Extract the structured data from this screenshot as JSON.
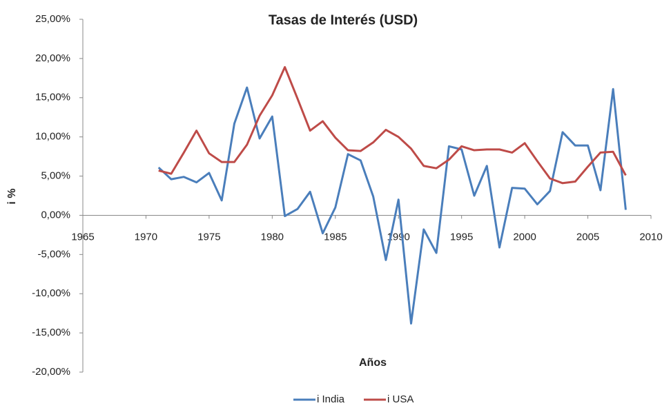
{
  "chart_data": {
    "type": "line",
    "title": "Tasas de Interés (USD)",
    "xlabel": "Años",
    "ylabel": "i %",
    "x": [
      1971,
      1972,
      1973,
      1974,
      1975,
      1976,
      1977,
      1978,
      1979,
      1980,
      1981,
      1982,
      1983,
      1984,
      1985,
      1986,
      1987,
      1988,
      1989,
      1990,
      1991,
      1992,
      1993,
      1994,
      1995,
      1996,
      1997,
      1998,
      1999,
      2000,
      2001,
      2002,
      2003,
      2004,
      2005,
      2006,
      2007,
      2008
    ],
    "series": [
      {
        "name": "i India",
        "color": "#4a7ebb",
        "values": [
          6.1,
          4.6,
          4.9,
          4.2,
          5.4,
          1.9,
          11.7,
          16.3,
          9.8,
          12.6,
          -0.1,
          0.8,
          3.0,
          -2.3,
          1.0,
          7.8,
          7.0,
          2.4,
          -5.7,
          2.0,
          -13.8,
          -1.8,
          -4.8,
          8.8,
          8.4,
          2.5,
          6.3,
          -4.1,
          3.5,
          3.4,
          1.4,
          3.1,
          10.6,
          8.9,
          8.9,
          3.2,
          16.1,
          0.7
        ]
      },
      {
        "name": "i USA",
        "color": "#be4b48",
        "values": [
          5.7,
          5.3,
          8.0,
          10.8,
          7.9,
          6.8,
          6.8,
          9.0,
          12.7,
          15.3,
          18.9,
          14.9,
          10.8,
          12.0,
          9.9,
          8.3,
          8.2,
          9.3,
          10.9,
          10.0,
          8.5,
          6.3,
          6.0,
          7.1,
          8.8,
          8.3,
          8.4,
          8.4,
          8.0,
          9.2,
          6.9,
          4.7,
          4.1,
          4.3,
          6.2,
          8.0,
          8.1,
          5.1
        ]
      }
    ],
    "xlim": [
      1965,
      2010
    ],
    "xticks": [
      1965,
      1970,
      1975,
      1980,
      1985,
      1990,
      1995,
      2000,
      2005,
      2010
    ],
    "ylim": [
      -20,
      25
    ],
    "yticks": [
      {
        "value": 25,
        "label": "25,00%"
      },
      {
        "value": 20,
        "label": "20,00%"
      },
      {
        "value": 15,
        "label": "15,00%"
      },
      {
        "value": 10,
        "label": "10,00%"
      },
      {
        "value": 5,
        "label": "5,00%"
      },
      {
        "value": 0,
        "label": "0,00%"
      },
      {
        "value": -5,
        "label": "-5,00%"
      },
      {
        "value": -10,
        "label": "-10,00%"
      },
      {
        "value": -15,
        "label": "-15,00%"
      },
      {
        "value": -20,
        "label": "-20,00%"
      }
    ],
    "grid": false,
    "legend": "bottom"
  }
}
